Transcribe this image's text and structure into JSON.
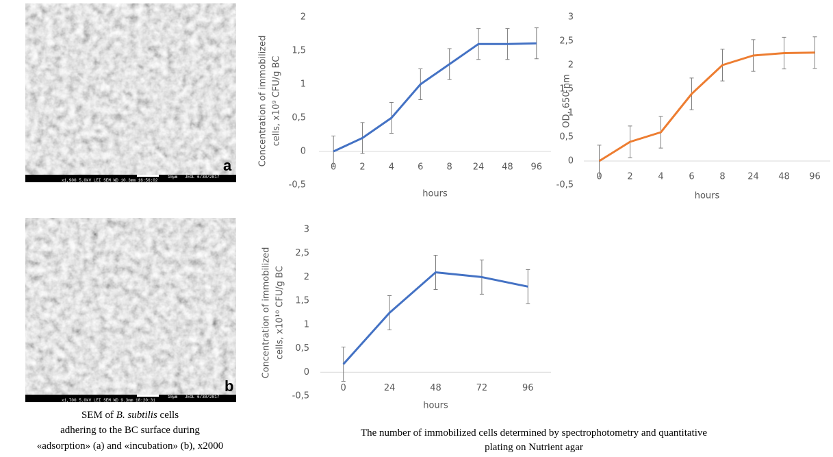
{
  "images": [
    {
      "letter": "a",
      "scale": "10μm",
      "info_top": "JEOL  6/30/2017",
      "info_bottom": "x1,900   5.0kV  LEI   SEM   WD 10.3mm  16:56:02"
    },
    {
      "letter": "b",
      "scale": "10μm",
      "info_top": "JEOL  6/30/2017",
      "info_bottom": "x1,700   5.0kV  LEI   SEM   WD 9.3mm  18:20:31"
    }
  ],
  "left_caption": {
    "pre": "SEM of",
    "species": "B. subtilis",
    "post": "cells",
    "line2": "adhering to the BC surface during",
    "line3": "«adsorption» (a) and «incubation» (b), x2000"
  },
  "right_caption": [
    "The number of immobilized cells determined by spectrophotometry and quantitative",
    "plating on Nutrient agar"
  ],
  "chart_data": [
    {
      "type": "line",
      "ylabel": [
        "Concentration of immobilized",
        "cells, x10⁹ CFU/g BC"
      ],
      "xlabel": "hours",
      "categories": [
        "0",
        "2",
        "4",
        "6",
        "8",
        "24",
        "48",
        "96"
      ],
      "series": [
        {
          "color": "#4472c4",
          "values": [
            0,
            0.2,
            0.5,
            1.0,
            1.3,
            1.6,
            1.6,
            1.61
          ],
          "errors": [
            0.23,
            0.23,
            0.23,
            0.23,
            0.23,
            0.23,
            0.23,
            0.23
          ]
        }
      ],
      "ylim": [
        -0.5,
        2
      ],
      "yticks": [
        {
          "value": -0.5,
          "label": "-0,5"
        },
        0,
        {
          "value": 0.5,
          "label": "0,5"
        },
        1,
        {
          "value": 1.5,
          "label": "1,5"
        },
        2
      ],
      "grid": false
    },
    {
      "type": "line",
      "ylabel": [
        "OD, 650 nm"
      ],
      "xlabel": "hours",
      "categories": [
        "0",
        "2",
        "4",
        "6",
        "8",
        "24",
        "48",
        "96"
      ],
      "series": [
        {
          "color": "#ed7d31",
          "values": [
            0,
            0.4,
            0.6,
            1.4,
            2.0,
            2.2,
            2.25,
            2.26
          ],
          "errors": [
            0.33,
            0.33,
            0.33,
            0.33,
            0.33,
            0.33,
            0.33,
            0.33
          ]
        }
      ],
      "ylim": [
        -0.5,
        3
      ],
      "yticks": [
        {
          "value": -0.5,
          "label": "-0,5"
        },
        0,
        {
          "value": 0.5,
          "label": "0,5"
        },
        1,
        {
          "value": 1.5,
          "label": "1,5"
        },
        2,
        {
          "value": 2.5,
          "label": "2,5"
        },
        3
      ],
      "grid": false
    },
    {
      "type": "line",
      "ylabel": [
        "Concentration of immobilized",
        "cells, x10¹⁰ CFU/g BC"
      ],
      "xlabel": "hours",
      "categories": [
        "0",
        "24",
        "48",
        "72",
        "96"
      ],
      "series": [
        {
          "color": "#4472c4",
          "values": [
            0.17,
            1.25,
            2.1,
            2.0,
            1.8
          ],
          "errors": [
            0.36,
            0.36,
            0.36,
            0.36,
            0.36
          ]
        }
      ],
      "ylim": [
        -0.5,
        3
      ],
      "yticks": [
        {
          "value": -0.5,
          "label": "-0,5"
        },
        0,
        {
          "value": 0.5,
          "label": "0,5"
        },
        1,
        {
          "value": 1.5,
          "label": "1,5"
        },
        2,
        {
          "value": 2.5,
          "label": "2,5"
        },
        3
      ],
      "grid": false
    }
  ]
}
